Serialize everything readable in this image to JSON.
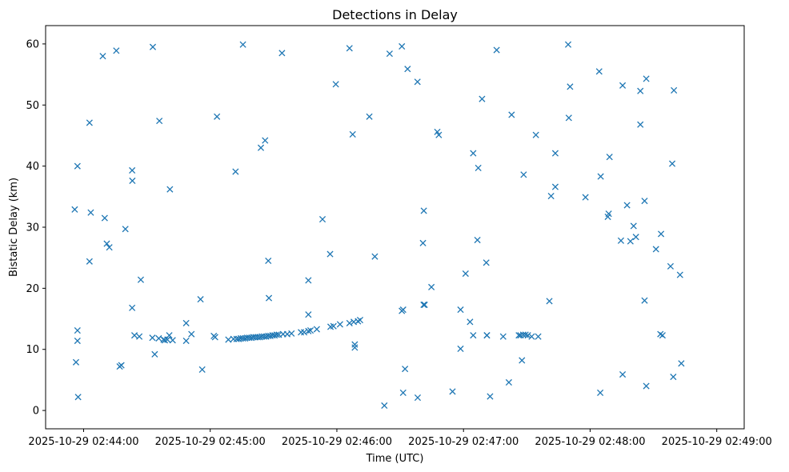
{
  "chart_data": {
    "type": "scatter",
    "title": "Detections in Delay",
    "xlabel": "Time (UTC)",
    "ylabel": "Bistatic Delay (km)",
    "marker": "x",
    "color": "#1f77b4",
    "x_unit": "seconds after 2025-10-29 02:44:00",
    "xlim": [
      -18,
      313
    ],
    "ylim": [
      -3,
      63
    ],
    "x_ticks": [
      {
        "value": 0,
        "label": "2025-10-29 02:44:00"
      },
      {
        "value": 60,
        "label": "2025-10-29 02:45:00"
      },
      {
        "value": 120,
        "label": "2025-10-29 02:46:00"
      },
      {
        "value": 180,
        "label": "2025-10-29 02:47:00"
      },
      {
        "value": 240,
        "label": "2025-10-29 02:48:00"
      },
      {
        "value": 300,
        "label": "2025-10-29 02:49:00"
      }
    ],
    "y_ticks": [
      {
        "value": 0,
        "label": "0"
      },
      {
        "value": 10,
        "label": "10"
      },
      {
        "value": 20,
        "label": "20"
      },
      {
        "value": 30,
        "label": "30"
      },
      {
        "value": 40,
        "label": "40"
      },
      {
        "value": 50,
        "label": "50"
      },
      {
        "value": 60,
        "label": "60"
      }
    ],
    "points": [
      [
        -4.2,
        32.9
      ],
      [
        -3.6,
        7.9
      ],
      [
        -2.9,
        40.0
      ],
      [
        -2.9,
        13.1
      ],
      [
        -2.9,
        11.4
      ],
      [
        -2.6,
        2.2
      ],
      [
        2.8,
        47.1
      ],
      [
        2.8,
        24.4
      ],
      [
        3.4,
        32.4
      ],
      [
        9.1,
        58.0
      ],
      [
        10.0,
        31.5
      ],
      [
        11.0,
        27.3
      ],
      [
        12.2,
        26.7
      ],
      [
        15.5,
        58.9
      ],
      [
        17.1,
        7.2
      ],
      [
        17.9,
        7.4
      ],
      [
        19.8,
        29.7
      ],
      [
        23.0,
        39.3
      ],
      [
        23.1,
        37.6
      ],
      [
        23.0,
        16.8
      ],
      [
        24.1,
        12.3
      ],
      [
        26.4,
        12.1
      ],
      [
        27.1,
        21.4
      ],
      [
        32.8,
        59.5
      ],
      [
        32.6,
        11.9
      ],
      [
        33.7,
        9.2
      ],
      [
        35.6,
        11.8
      ],
      [
        35.9,
        47.4
      ],
      [
        37.9,
        11.6
      ],
      [
        38.5,
        11.5
      ],
      [
        39.7,
        11.6
      ],
      [
        40.6,
        12.3
      ],
      [
        40.9,
        36.2
      ],
      [
        42.2,
        11.5
      ],
      [
        48.6,
        14.3
      ],
      [
        48.6,
        11.4
      ],
      [
        51.1,
        12.5
      ],
      [
        55.4,
        18.2
      ],
      [
        56.2,
        6.7
      ],
      [
        61.7,
        12.2
      ],
      [
        62.3,
        12.0
      ],
      [
        63.2,
        48.1
      ],
      [
        68.6,
        11.6
      ],
      [
        71.0,
        11.7
      ],
      [
        72.0,
        39.1
      ],
      [
        72.5,
        11.7
      ],
      [
        73.5,
        11.7
      ],
      [
        74.5,
        11.8
      ],
      [
        75.5,
        59.9
      ],
      [
        75.5,
        11.8
      ],
      [
        76.5,
        11.8
      ],
      [
        77.5,
        11.9
      ],
      [
        78.5,
        11.9
      ],
      [
        79.5,
        11.9
      ],
      [
        80.5,
        12.0
      ],
      [
        81.5,
        12.0
      ],
      [
        82.5,
        12.0
      ],
      [
        83.5,
        12.0
      ],
      [
        84.0,
        43.0
      ],
      [
        84.5,
        12.1
      ],
      [
        85.5,
        12.1
      ],
      [
        86.0,
        44.2
      ],
      [
        86.5,
        12.1
      ],
      [
        87.5,
        12.2
      ],
      [
        87.5,
        24.5
      ],
      [
        87.8,
        18.4
      ],
      [
        88.5,
        12.2
      ],
      [
        89.5,
        12.3
      ],
      [
        90.5,
        12.3
      ],
      [
        91.5,
        12.4
      ],
      [
        92.5,
        12.4
      ],
      [
        94.0,
        58.5
      ],
      [
        94.5,
        12.5
      ],
      [
        96.5,
        12.5
      ],
      [
        98.5,
        12.6
      ],
      [
        103.0,
        12.8
      ],
      [
        104.5,
        12.8
      ],
      [
        106.5,
        21.3
      ],
      [
        106.5,
        15.7
      ],
      [
        106.5,
        13.0
      ],
      [
        107.5,
        13.1
      ],
      [
        110.5,
        13.3
      ],
      [
        113.2,
        31.3
      ],
      [
        116.8,
        25.6
      ],
      [
        117.0,
        13.7
      ],
      [
        118.4,
        13.8
      ],
      [
        119.5,
        53.4
      ],
      [
        121.5,
        14.1
      ],
      [
        126.0,
        59.3
      ],
      [
        126.0,
        14.3
      ],
      [
        127.5,
        45.2
      ],
      [
        128.0,
        14.5
      ],
      [
        128.5,
        10.8
      ],
      [
        128.5,
        10.3
      ],
      [
        130.0,
        14.6
      ],
      [
        131.0,
        14.8
      ],
      [
        135.4,
        48.1
      ],
      [
        138.0,
        25.2
      ],
      [
        142.5,
        0.8
      ],
      [
        145.0,
        58.4
      ],
      [
        150.8,
        59.6
      ],
      [
        150.8,
        16.3
      ],
      [
        151.4,
        16.5
      ],
      [
        151.4,
        2.9
      ],
      [
        152.3,
        6.8
      ],
      [
        153.5,
        55.9
      ],
      [
        158.2,
        53.8
      ],
      [
        158.3,
        2.1
      ],
      [
        160.8,
        27.4
      ],
      [
        161.2,
        32.7
      ],
      [
        161.1,
        17.3
      ],
      [
        161.6,
        17.3
      ],
      [
        164.8,
        20.2
      ],
      [
        167.6,
        45.6
      ],
      [
        168.3,
        45.1
      ],
      [
        174.8,
        3.1
      ],
      [
        178.6,
        16.5
      ],
      [
        178.6,
        10.1
      ],
      [
        181.0,
        22.4
      ],
      [
        183.1,
        14.5
      ],
      [
        184.6,
        12.3
      ],
      [
        184.6,
        42.1
      ],
      [
        186.6,
        27.9
      ],
      [
        187.0,
        39.7
      ],
      [
        188.8,
        51.0
      ],
      [
        190.8,
        24.2
      ],
      [
        191.1,
        12.3
      ],
      [
        191.1,
        12.3
      ],
      [
        192.6,
        2.3
      ],
      [
        195.7,
        59.0
      ],
      [
        198.8,
        12.1
      ],
      [
        201.5,
        4.6
      ],
      [
        202.8,
        48.4
      ],
      [
        206.2,
        12.3
      ],
      [
        207.0,
        12.3
      ],
      [
        207.7,
        8.2
      ],
      [
        208.3,
        12.4
      ],
      [
        208.5,
        38.6
      ],
      [
        209.4,
        12.4
      ],
      [
        210.5,
        12.3
      ],
      [
        212.3,
        12.1
      ],
      [
        214.3,
        45.1
      ],
      [
        215.4,
        12.1
      ],
      [
        220.7,
        17.9
      ],
      [
        221.5,
        35.1
      ],
      [
        223.5,
        36.6
      ],
      [
        223.5,
        42.1
      ],
      [
        229.6,
        59.9
      ],
      [
        229.9,
        47.9
      ],
      [
        230.5,
        53.0
      ],
      [
        237.8,
        34.9
      ],
      [
        244.3,
        55.5
      ],
      [
        244.8,
        2.9
      ],
      [
        245.0,
        38.3
      ],
      [
        248.4,
        31.7
      ],
      [
        248.8,
        32.2
      ],
      [
        249.2,
        41.5
      ],
      [
        254.6,
        27.8
      ],
      [
        255.4,
        53.2
      ],
      [
        255.4,
        5.9
      ],
      [
        257.5,
        33.6
      ],
      [
        259.1,
        27.7
      ],
      [
        260.6,
        30.2
      ],
      [
        261.7,
        28.4
      ],
      [
        263.8,
        52.3
      ],
      [
        263.8,
        46.8
      ],
      [
        265.8,
        34.3
      ],
      [
        265.8,
        18.0
      ],
      [
        266.6,
        54.3
      ],
      [
        266.6,
        4.0
      ],
      [
        271.2,
        26.4
      ],
      [
        273.3,
        12.5
      ],
      [
        273.6,
        28.9
      ],
      [
        274.3,
        12.3
      ],
      [
        278.1,
        23.6
      ],
      [
        278.9,
        40.4
      ],
      [
        279.4,
        5.5
      ],
      [
        279.7,
        52.4
      ],
      [
        282.6,
        22.2
      ],
      [
        283.2,
        7.7
      ]
    ]
  }
}
